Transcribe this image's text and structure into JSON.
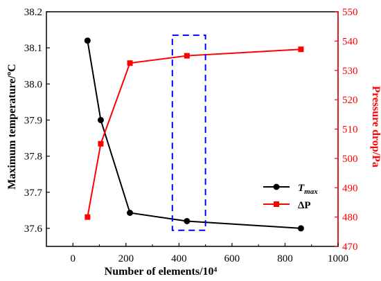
{
  "colors": {
    "left_series": "#000000",
    "right_series": "#ff0000",
    "highlight_box": "#0000ff",
    "axis": "#000000"
  },
  "chart_data": {
    "type": "line",
    "title": "",
    "xlabel": "Number of elements/10⁴",
    "xlim": [
      -100,
      1000
    ],
    "xticks": [
      0,
      200,
      400,
      600,
      800,
      1000
    ],
    "y_left": {
      "label": "Maximum temperature/ºC",
      "lim": [
        37.55,
        38.2
      ],
      "ticks": [
        37.6,
        37.7,
        37.8,
        37.9,
        38.0,
        38.1,
        38.2
      ]
    },
    "y_right": {
      "label": "Pressure drop/Pa",
      "lim": [
        470,
        550
      ],
      "ticks": [
        470,
        480,
        490,
        500,
        510,
        520,
        530,
        540,
        550
      ]
    },
    "series": [
      {
        "name": "T_max",
        "legend_main": "T",
        "legend_sub": "max",
        "axis": "left",
        "marker": "circle",
        "x": [
          55,
          105,
          215,
          430,
          860
        ],
        "y": [
          38.12,
          37.9,
          37.643,
          37.62,
          37.6
        ]
      },
      {
        "name": "ΔP",
        "legend_main": "ΔP",
        "legend_sub": "",
        "axis": "right",
        "marker": "square",
        "x": [
          55,
          105,
          215,
          430,
          860
        ],
        "y": [
          480,
          505,
          532.5,
          535,
          537.2
        ]
      }
    ],
    "highlight_box": {
      "x": [
        375,
        500
      ],
      "y_right": [
        475.5,
        542
      ],
      "style": "dashed"
    },
    "legend": {
      "position": "lower-right"
    },
    "grid": false
  }
}
